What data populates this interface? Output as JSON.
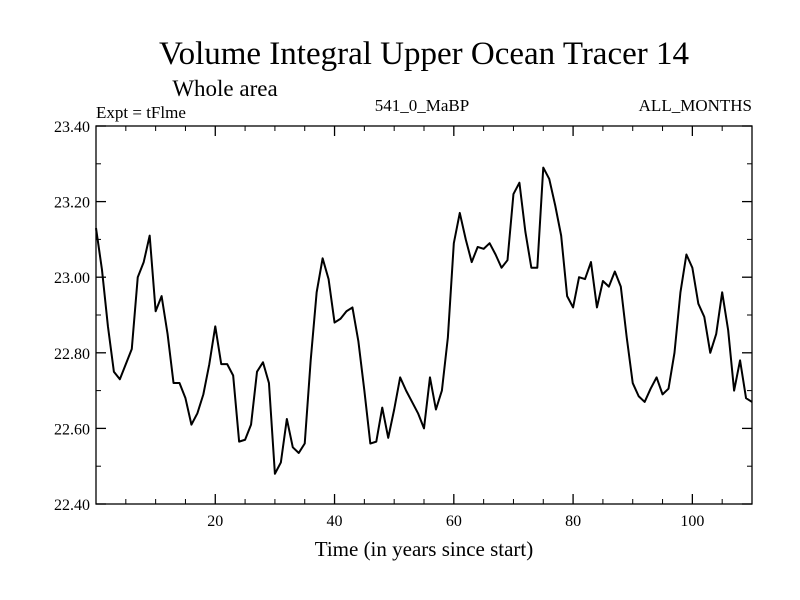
{
  "chart_data": {
    "type": "line",
    "title": "Volume Integral Upper Ocean Tracer 14",
    "subtitle": "Whole area",
    "left_label": "Expt = tFlme",
    "center_label": "541_0_MaBP",
    "right_label": "ALL_MONTHS",
    "xlabel": "Time (in years since start)",
    "ylabel": "",
    "xlim": [
      0,
      110
    ],
    "ylim": [
      22.4,
      23.4
    ],
    "x_ticks": [
      20,
      40,
      60,
      80,
      100
    ],
    "x_tick_labels": [
      "20",
      "40",
      "60",
      "80",
      "100"
    ],
    "y_ticks": [
      22.4,
      22.6,
      22.8,
      23.0,
      23.2,
      23.4
    ],
    "y_tick_labels": [
      "22.40",
      "22.60",
      "22.80",
      "23.00",
      "23.20",
      "23.40"
    ],
    "series": [
      {
        "name": "Tracer 14",
        "color": "#000000",
        "x": [
          0,
          1,
          2,
          3,
          4,
          5,
          6,
          7,
          8,
          9,
          10,
          11,
          12,
          13,
          14,
          15,
          16,
          17,
          18,
          19,
          20,
          21,
          22,
          23,
          24,
          25,
          26,
          27,
          28,
          29,
          30,
          31,
          32,
          33,
          34,
          35,
          36,
          37,
          38,
          39,
          40,
          41,
          42,
          43,
          44,
          45,
          46,
          47,
          48,
          49,
          50,
          51,
          52,
          53,
          54,
          55,
          56,
          57,
          58,
          59,
          60,
          61,
          62,
          63,
          64,
          65,
          66,
          67,
          68,
          69,
          70,
          71,
          72,
          73,
          74,
          75,
          76,
          77,
          78,
          79,
          80,
          81,
          82,
          83,
          84,
          85,
          86,
          87,
          88,
          89,
          90,
          91,
          92,
          93,
          94,
          95,
          96,
          97,
          98,
          99,
          100,
          101,
          102,
          103,
          104,
          105,
          106,
          107,
          108,
          109,
          110
        ],
        "values": [
          23.13,
          23.02,
          22.87,
          22.75,
          22.73,
          22.77,
          22.81,
          23.0,
          23.04,
          23.11,
          22.91,
          22.95,
          22.85,
          22.72,
          22.72,
          22.68,
          22.61,
          22.64,
          22.69,
          22.77,
          22.87,
          22.77,
          22.77,
          22.74,
          22.565,
          22.57,
          22.61,
          22.75,
          22.775,
          22.72,
          22.48,
          22.51,
          22.625,
          22.55,
          22.535,
          22.56,
          22.78,
          22.96,
          23.05,
          22.995,
          22.88,
          22.89,
          22.91,
          22.92,
          22.83,
          22.7,
          22.56,
          22.565,
          22.655,
          22.575,
          22.65,
          22.735,
          22.7,
          22.67,
          22.64,
          22.6,
          22.735,
          22.65,
          22.7,
          22.84,
          23.09,
          23.17,
          23.1,
          23.04,
          23.08,
          23.075,
          23.09,
          23.06,
          23.025,
          23.045,
          23.22,
          23.25,
          23.12,
          23.025,
          23.025,
          23.29,
          23.26,
          23.19,
          23.11,
          22.95,
          22.92,
          23.0,
          22.995,
          23.04,
          22.92,
          22.99,
          22.975,
          23.015,
          22.975,
          22.84,
          22.72,
          22.685,
          22.67,
          22.705,
          22.735,
          22.69,
          22.705,
          22.8,
          22.96,
          23.06,
          23.025,
          22.93,
          22.895,
          22.8,
          22.85,
          22.96,
          22.86,
          22.7,
          22.78,
          22.68,
          22.67
        ]
      }
    ]
  }
}
